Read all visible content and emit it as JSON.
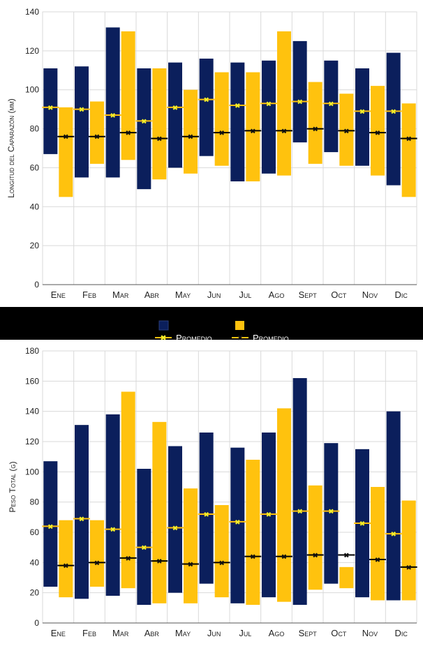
{
  "colors": {
    "navy": "#0b1f5c",
    "gold": "#ffc20e",
    "avg_navy_marker": "#f2ef2a",
    "avg_gold_marker": "#111111",
    "band": "#000000",
    "grid": "#d9d9d9"
  },
  "legend": {
    "navy_label": "",
    "gold_label": "",
    "navy_avg_label": "Promedio",
    "gold_avg_label": "Promedio"
  },
  "chart_data": [
    {
      "type": "bar",
      "subtype": "floating-range",
      "title": "",
      "xlabel": "",
      "ylabel": "Longitud del Caparazón (mm)",
      "ylim": [
        0,
        140
      ],
      "yticks": [
        0,
        20,
        40,
        60,
        80,
        100,
        120,
        140
      ],
      "grid": true,
      "categories": [
        "Ene",
        "Feb",
        "Mar",
        "Abr",
        "May",
        "Jun",
        "Jul",
        "Ago",
        "Sept",
        "Oct",
        "Nov",
        "Dic"
      ],
      "series": [
        {
          "color": "navy",
          "min": [
            67,
            55,
            55,
            49,
            60,
            66,
            53,
            57,
            73,
            68,
            61,
            51
          ],
          "max": [
            111,
            112,
            132,
            111,
            114,
            116,
            114,
            115,
            125,
            115,
            111,
            119
          ],
          "avg": [
            91,
            90,
            87,
            84,
            91,
            95,
            92,
            93,
            94,
            93,
            89,
            89
          ]
        },
        {
          "color": "gold",
          "min": [
            45,
            62,
            64,
            54,
            57,
            61,
            53,
            56,
            62,
            61,
            56,
            45
          ],
          "max": [
            91,
            94,
            130,
            111,
            100,
            109,
            109,
            130,
            104,
            98,
            102,
            93
          ],
          "avg": [
            76,
            76,
            78,
            75,
            76,
            78,
            79,
            79,
            80,
            79,
            78,
            75
          ]
        }
      ]
    },
    {
      "type": "bar",
      "subtype": "floating-range",
      "title": "",
      "xlabel": "",
      "ylabel": "Peso Total (g)",
      "ylim": [
        0,
        180
      ],
      "yticks": [
        0,
        20,
        40,
        60,
        80,
        100,
        120,
        140,
        160,
        180
      ],
      "grid": true,
      "categories": [
        "Ene",
        "Feb",
        "Mar",
        "Abr",
        "May",
        "Jun",
        "Jul",
        "Ago",
        "Sept",
        "Oct",
        "Nov",
        "Dic"
      ],
      "series": [
        {
          "color": "navy",
          "min": [
            24,
            16,
            18,
            12,
            20,
            26,
            13,
            17,
            12,
            26,
            17,
            15
          ],
          "max": [
            107,
            131,
            138,
            102,
            117,
            126,
            116,
            126,
            162,
            119,
            115,
            140
          ],
          "avg": [
            64,
            69,
            62,
            50,
            63,
            72,
            67,
            72,
            74,
            74,
            66,
            59
          ]
        },
        {
          "color": "gold",
          "min": [
            17,
            24,
            23,
            13,
            13,
            17,
            12,
            14,
            22,
            23,
            15,
            15
          ],
          "max": [
            68,
            68,
            153,
            133,
            89,
            78,
            108,
            142,
            91,
            37,
            90,
            81
          ],
          "avg": [
            38,
            40,
            43,
            41,
            39,
            40,
            44,
            44,
            45,
            45,
            42,
            37
          ]
        }
      ]
    }
  ]
}
